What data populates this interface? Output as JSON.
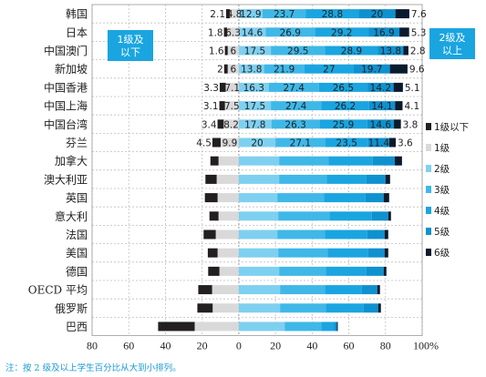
{
  "chart_data": {
    "type": "bar",
    "stacked": "diverging",
    "categories": [
      "韩国",
      "日本",
      "中国澳门",
      "新加坡",
      "中国香港",
      "中国上海",
      "中国台湾",
      "芬兰",
      "加拿大",
      "澳大利亚",
      "英国",
      "意大利",
      "法国",
      "美国",
      "德国",
      "OECD 平均",
      "俄罗斯",
      "巴西"
    ],
    "series": [
      {
        "name": "1级以下",
        "color": "#231f20",
        "values": [
          2.1,
          1.8,
          1.6,
          2.0,
          3.3,
          3.1,
          3.4,
          4.5,
          4.5,
          6.2,
          7.0,
          5.0,
          6.7,
          5.4,
          6.2,
          7.6,
          8.4,
          20.0
        ]
      },
      {
        "name": "1级",
        "color": "#d9d9d9",
        "values": [
          4.8,
          6.3,
          6.0,
          6.0,
          7.1,
          7.5,
          8.2,
          9.9,
          11.0,
          12.0,
          11.5,
          11.0,
          12.5,
          11.5,
          10.5,
          14.5,
          14.2,
          24.0
        ]
      },
      {
        "name": "2级",
        "color": "#7ed0f0",
        "values": [
          12.9,
          14.6,
          17.5,
          13.8,
          16.3,
          17.5,
          17.8,
          20.0,
          22.0,
          22.0,
          21.0,
          21.5,
          21.0,
          21.5,
          22.0,
          22.5,
          22.5,
          25.0
        ]
      },
      {
        "name": "3级",
        "color": "#3fb8e8",
        "values": [
          23.7,
          26.9,
          29.5,
          21.9,
          27.4,
          27.4,
          26.3,
          27.1,
          27.0,
          26.0,
          25.5,
          28.0,
          26.0,
          27.0,
          25.5,
          24.5,
          25.0,
          20.0
        ]
      },
      {
        "name": "4级",
        "color": "#1aa5e0",
        "values": [
          28.8,
          29.2,
          28.9,
          27.0,
          26.5,
          26.2,
          25.9,
          23.5,
          24.0,
          21.5,
          22.5,
          23.0,
          23.0,
          22.0,
          22.0,
          20.0,
          20.5,
          7.0
        ]
      },
      {
        "name": "5级",
        "color": "#0f91cf",
        "values": [
          20.0,
          16.9,
          13.8,
          19.7,
          14.2,
          14.1,
          14.6,
          11.4,
          12.0,
          10.5,
          10.0,
          9.0,
          9.5,
          9.0,
          9.5,
          8.5,
          8.0,
          1.5
        ]
      },
      {
        "name": "6级",
        "color": "#0b1b2e",
        "values": [
          7.6,
          5.3,
          2.8,
          9.6,
          5.1,
          4.1,
          3.8,
          3.6,
          4.0,
          2.5,
          3.0,
          1.5,
          2.0,
          2.0,
          1.5,
          1.5,
          1.5,
          0.5
        ]
      }
    ],
    "labeled_rows": 8,
    "xlim": [
      -80,
      100
    ],
    "xticks": [
      "80",
      "60",
      "40",
      "20",
      "0",
      "20",
      "40",
      "60",
      "80",
      "100%"
    ],
    "legend_position": "right"
  },
  "annotations": {
    "below_level2": "1级及\n以下",
    "above_level2": "2级及\n以上"
  },
  "note": "注：按 2 级及以上学生百分比从大到小排列。"
}
